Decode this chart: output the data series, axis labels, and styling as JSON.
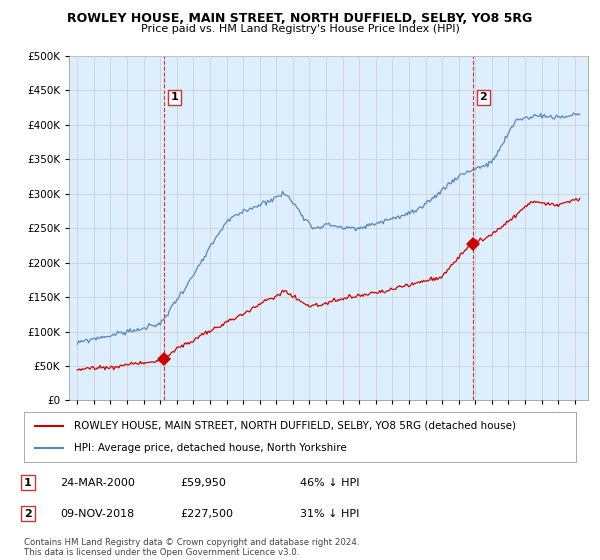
{
  "title": "ROWLEY HOUSE, MAIN STREET, NORTH DUFFIELD, SELBY, YO8 5RG",
  "subtitle": "Price paid vs. HM Land Registry's House Price Index (HPI)",
  "legend_label_red": "ROWLEY HOUSE, MAIN STREET, NORTH DUFFIELD, SELBY, YO8 5RG (detached house)",
  "legend_label_blue": "HPI: Average price, detached house, North Yorkshire",
  "table_rows": [
    {
      "num": "1",
      "date": "24-MAR-2000",
      "price": "£59,950",
      "pct": "46% ↓ HPI"
    },
    {
      "num": "2",
      "date": "09-NOV-2018",
      "price": "£227,500",
      "pct": "31% ↓ HPI"
    }
  ],
  "footnote": "Contains HM Land Registry data © Crown copyright and database right 2024.\nThis data is licensed under the Open Government Licence v3.0.",
  "ylim": [
    0,
    500000
  ],
  "yticks": [
    0,
    50000,
    100000,
    150000,
    200000,
    250000,
    300000,
    350000,
    400000,
    450000,
    500000
  ],
  "red_color": "#cc0000",
  "blue_color": "#5588bb",
  "bg_fill_color": "#ddeeff",
  "purchase_marker_color": "#cc0000",
  "purchase1_year": 2000.22,
  "purchase1_price": 59950,
  "purchase2_year": 2018.86,
  "purchase2_price": 227500,
  "background_color": "#ffffff",
  "grid_color": "#cccccc"
}
